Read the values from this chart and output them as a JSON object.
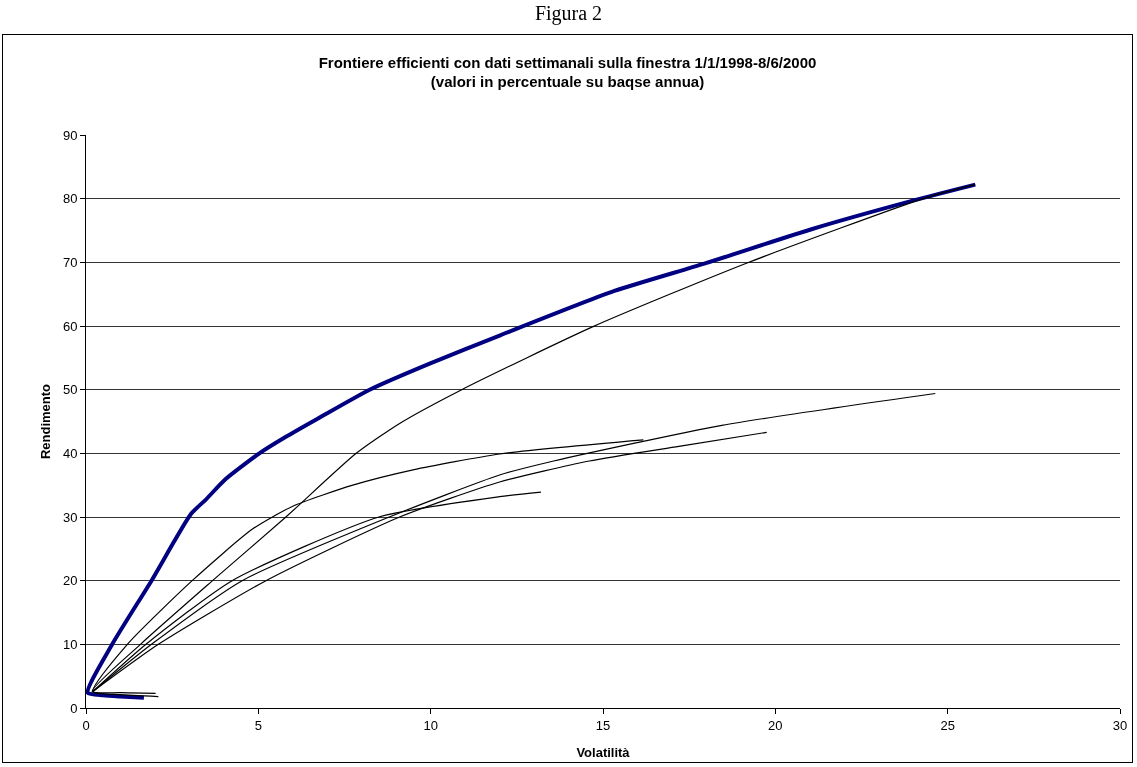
{
  "chart_data": {
    "type": "line",
    "title": "Frontiere efficienti con dati settimanali sulla finestra 1/1/1998-8/6/2000\n(valori in percentuale su baqse annua)",
    "xlabel": "Volatilità",
    "ylabel": "Rendimento",
    "annotations": [
      "Figura 2"
    ],
    "xlim": [
      0,
      30
    ],
    "xticks": [
      0,
      5,
      10,
      15,
      20,
      25,
      30
    ],
    "ylim": [
      0,
      90
    ],
    "yticks": [
      0,
      10,
      20,
      30,
      40,
      50,
      60,
      70,
      80,
      90
    ],
    "grid": "y",
    "marker": "none",
    "line_style": "solid",
    "series": [
      {
        "color": "#000080",
        "x": [
          1.68,
          1.0,
          0.5,
          0.05,
          0.76,
          1.9,
          3.05,
          3.47,
          4.06,
          5.03,
          5.8,
          6.77,
          8.23,
          9.97,
          12.0,
          15.33,
          17.94,
          21.05,
          24.07,
          25.8
        ],
        "values": [
          1.6,
          1.8,
          2.0,
          2.4,
          10,
          20,
          30.5,
          32.7,
          36,
          40,
          42.6,
          45.6,
          50,
          54.1,
          58.5,
          65.5,
          69.8,
          75.2,
          79.8,
          82.2
        ]
      },
      {
        "color": "#000000",
        "x": [
          2.02,
          1.0,
          0.18,
          1.58,
          3.67,
          5.8,
          7.84,
          9.1,
          10.9,
          14.71,
          19.18,
          24.4,
          25.8
        ],
        "values": [
          2.3,
          2.4,
          2.6,
          10,
          20,
          30,
          40,
          44.7,
          50,
          59.9,
          69.9,
          80.2,
          82.2
        ]
      },
      {
        "color": "#000000",
        "x": [
          2.1,
          1.0,
          0.2,
          1.2,
          3.08,
          4.83,
          6.0,
          7.74,
          9.49,
          12.0,
          16.17
        ],
        "values": [
          1.8,
          2.1,
          2.6,
          10,
          20,
          28.1,
          31.7,
          35,
          37.4,
          39.9,
          42.1
        ]
      },
      {
        "color": "#000000",
        "x": [
          0.2,
          1.9,
          4.53,
          8.8,
          12.0,
          13.57,
          18.45,
          24.64
        ],
        "values": [
          2.6,
          10,
          20,
          30,
          36.6,
          38.8,
          44.4,
          49.4
        ]
      },
      {
        "color": "#000000",
        "x": [
          0.2,
          2.1,
          5.22,
          9.1,
          12.0,
          14.6,
          17.2,
          19.75
        ],
        "values": [
          2.6,
          10,
          20,
          30,
          35.5,
          38.8,
          41.1,
          43.3
        ]
      },
      {
        "color": "#000000",
        "x": [
          0.2,
          1.74,
          4.24,
          8.5,
          12.0,
          13.2
        ],
        "values": [
          2.6,
          10,
          20,
          30,
          33.2,
          33.9
        ]
      }
    ]
  }
}
